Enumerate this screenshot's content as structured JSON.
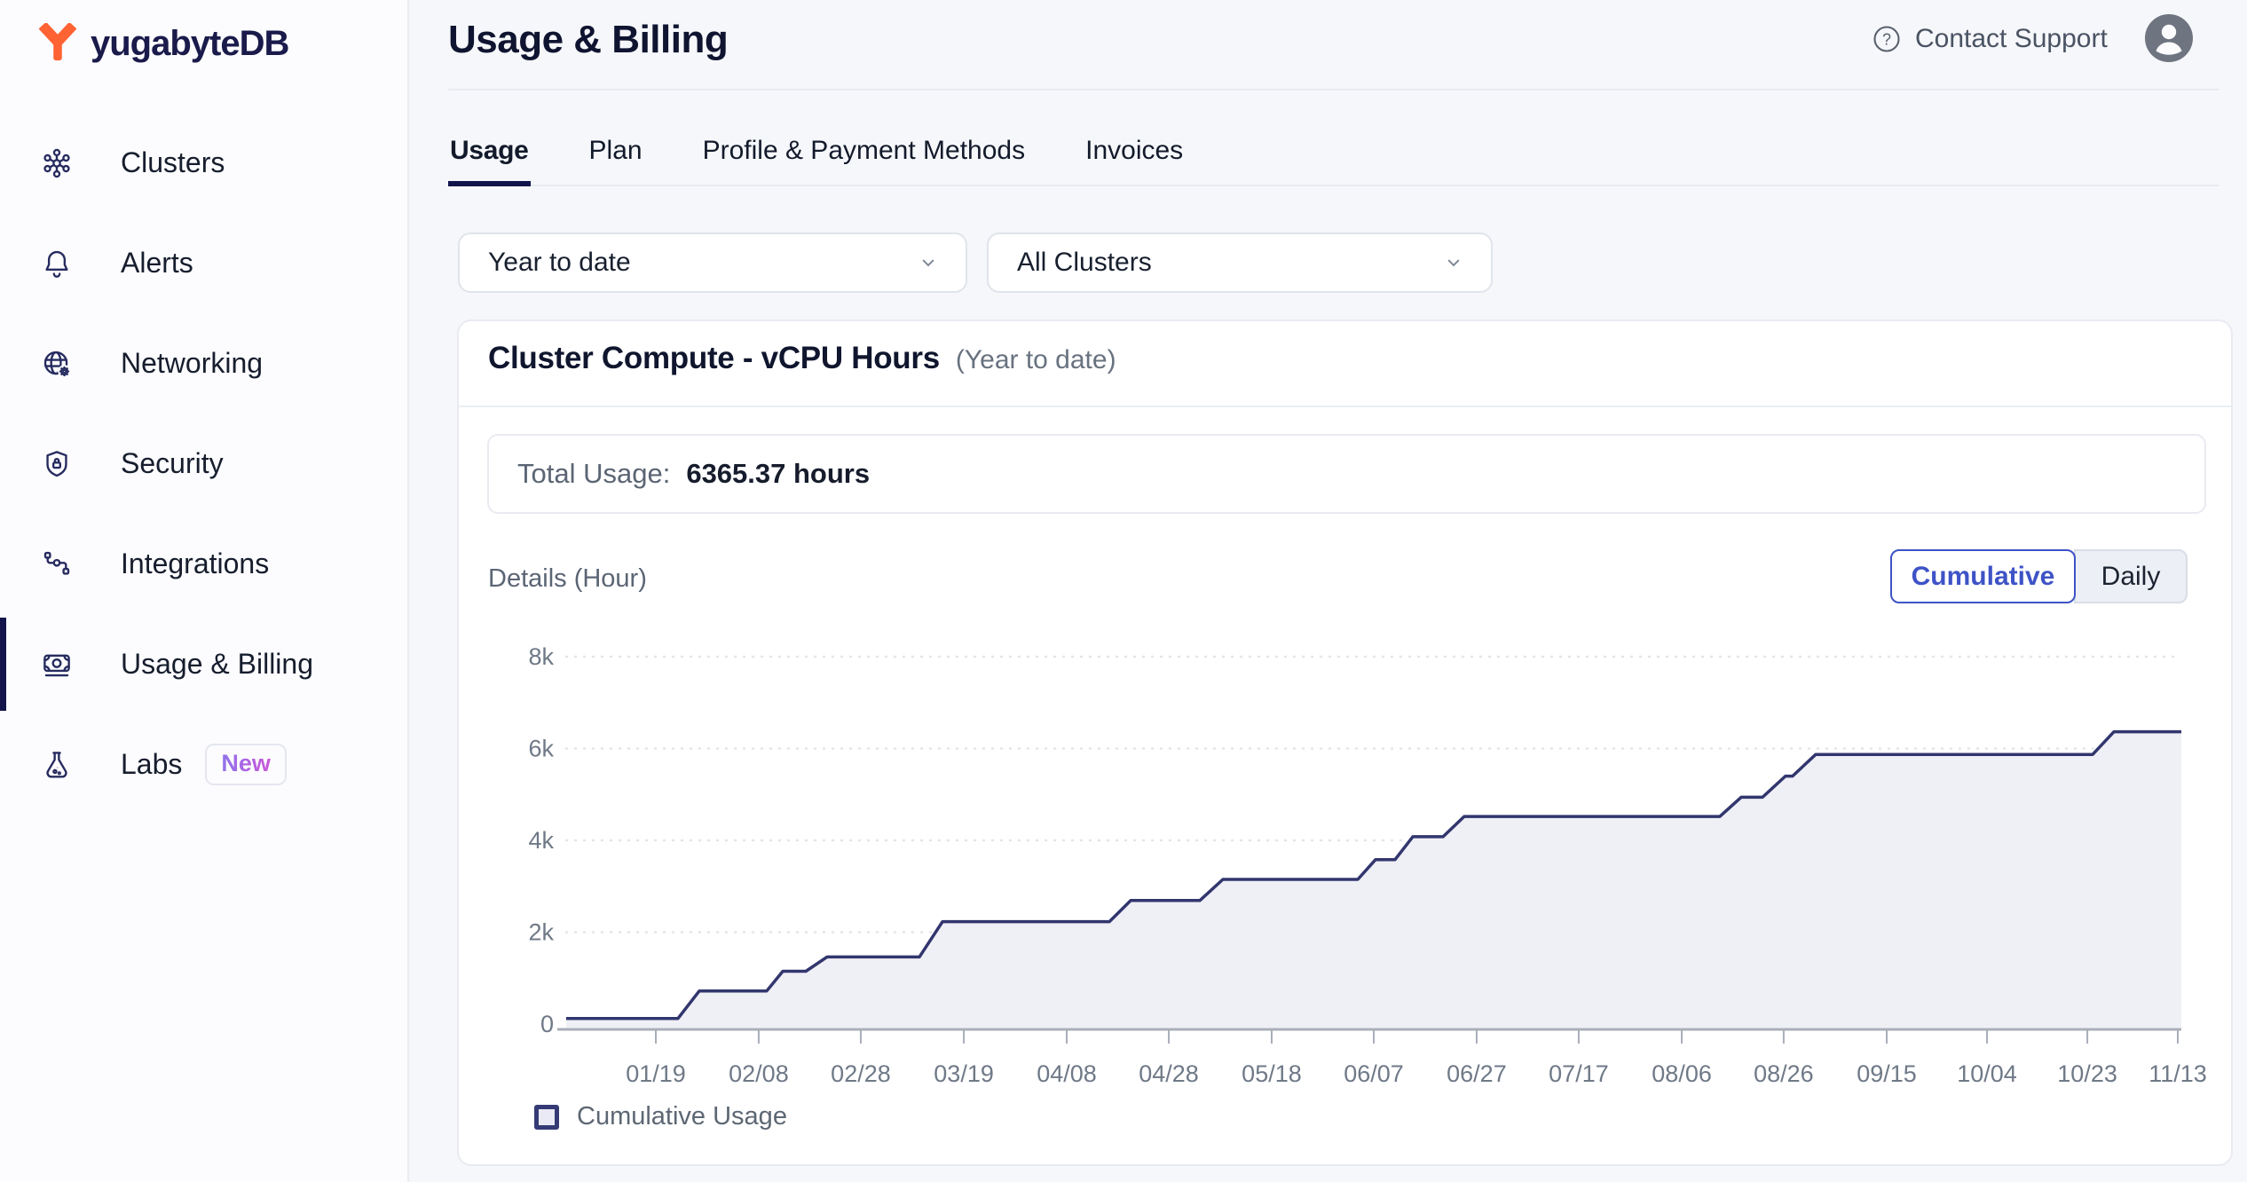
{
  "sidebar": {
    "logo_text": "yugabyteDB",
    "items": [
      {
        "label": "Clusters",
        "icon": "clusters-icon",
        "active": false
      },
      {
        "label": "Alerts",
        "icon": "alerts-icon",
        "active": false
      },
      {
        "label": "Networking",
        "icon": "networking-icon",
        "active": false
      },
      {
        "label": "Security",
        "icon": "security-icon",
        "active": false
      },
      {
        "label": "Integrations",
        "icon": "integrations-icon",
        "active": false
      },
      {
        "label": "Usage & Billing",
        "icon": "billing-icon",
        "active": true
      },
      {
        "label": "Labs",
        "icon": "labs-icon",
        "active": false,
        "badge": "New"
      }
    ]
  },
  "header": {
    "title": "Usage & Billing",
    "support_label": "Contact Support"
  },
  "tabs": [
    {
      "label": "Usage",
      "active": true
    },
    {
      "label": "Plan",
      "active": false
    },
    {
      "label": "Profile & Payment Methods",
      "active": false
    },
    {
      "label": "Invoices",
      "active": false
    }
  ],
  "filters": {
    "time_range": "Year to date",
    "cluster": "All Clusters"
  },
  "card": {
    "title": "Cluster Compute - vCPU Hours",
    "subtitle": "(Year to date)",
    "total_label": "Total Usage:",
    "total_value": "6365.37 hours",
    "details_label": "Details (Hour)",
    "toggle": {
      "cumulative_label": "Cumulative",
      "daily_label": "Daily",
      "active": "Cumulative"
    },
    "legend_label": "Cumulative Usage"
  },
  "colors": {
    "accent_blue": "#3E53C6",
    "navy": "#13144B",
    "logo_orange": "#FF6233",
    "chart_line": "#32366E",
    "chart_fill": "#EFEFF6",
    "gridline": "#E3E5EB",
    "axis": "#A8AEB9",
    "axis_text": "#6F7987",
    "badge_gradient": [
      "#7F7AEE",
      "#DA4FD6"
    ]
  },
  "chart_data": {
    "type": "area",
    "title": "Cluster Compute - vCPU Hours (Year to date)",
    "ylabel": "Hour",
    "ylim": [
      0,
      8000
    ],
    "grid": "dotted-horizontal",
    "legend_position": "bottom-left",
    "yticks": [
      {
        "label": "0",
        "value": 0
      },
      {
        "label": "2k",
        "value": 2000
      },
      {
        "label": "4k",
        "value": 4000
      },
      {
        "label": "6k",
        "value": 6000
      },
      {
        "label": "8k",
        "value": 8000
      }
    ],
    "xticks": [
      {
        "label": "01/19",
        "pos": 0.0555
      },
      {
        "label": "02/08",
        "pos": 0.1192
      },
      {
        "label": "02/28",
        "pos": 0.1824
      },
      {
        "label": "03/19",
        "pos": 0.2462
      },
      {
        "label": "04/08",
        "pos": 0.3099
      },
      {
        "label": "04/28",
        "pos": 0.3731
      },
      {
        "label": "05/18",
        "pos": 0.4368
      },
      {
        "label": "06/07",
        "pos": 0.5
      },
      {
        "label": "06/27",
        "pos": 0.5637
      },
      {
        "label": "07/17",
        "pos": 0.6269
      },
      {
        "label": "08/06",
        "pos": 0.6907
      },
      {
        "label": "08/26",
        "pos": 0.7538
      },
      {
        "label": "09/15",
        "pos": 0.8176
      },
      {
        "label": "10/04",
        "pos": 0.8797
      },
      {
        "label": "10/23",
        "pos": 0.9418
      },
      {
        "label": "11/13",
        "pos": 0.9978
      }
    ],
    "series": [
      {
        "name": "Cumulative Usage",
        "total": 6365.37,
        "points": [
          [
            0.0,
            120
          ],
          [
            0.0692,
            120
          ],
          [
            0.0824,
            720
          ],
          [
            0.1242,
            720
          ],
          [
            0.1341,
            1150
          ],
          [
            0.1484,
            1150
          ],
          [
            0.1615,
            1460
          ],
          [
            0.2187,
            1460
          ],
          [
            0.233,
            2230
          ],
          [
            0.3363,
            2230
          ],
          [
            0.3495,
            2690
          ],
          [
            0.3923,
            2690
          ],
          [
            0.4066,
            3150
          ],
          [
            0.4901,
            3150
          ],
          [
            0.5011,
            3580
          ],
          [
            0.5132,
            3580
          ],
          [
            0.5242,
            4080
          ],
          [
            0.5429,
            4080
          ],
          [
            0.556,
            4520
          ],
          [
            0.7143,
            4520
          ],
          [
            0.7275,
            4940
          ],
          [
            0.7407,
            4940
          ],
          [
            0.7549,
            5400
          ],
          [
            0.7593,
            5400
          ],
          [
            0.7736,
            5870
          ],
          [
            0.9451,
            5870
          ],
          [
            0.9583,
            6365
          ],
          [
            1.0,
            6365
          ]
        ]
      }
    ]
  }
}
